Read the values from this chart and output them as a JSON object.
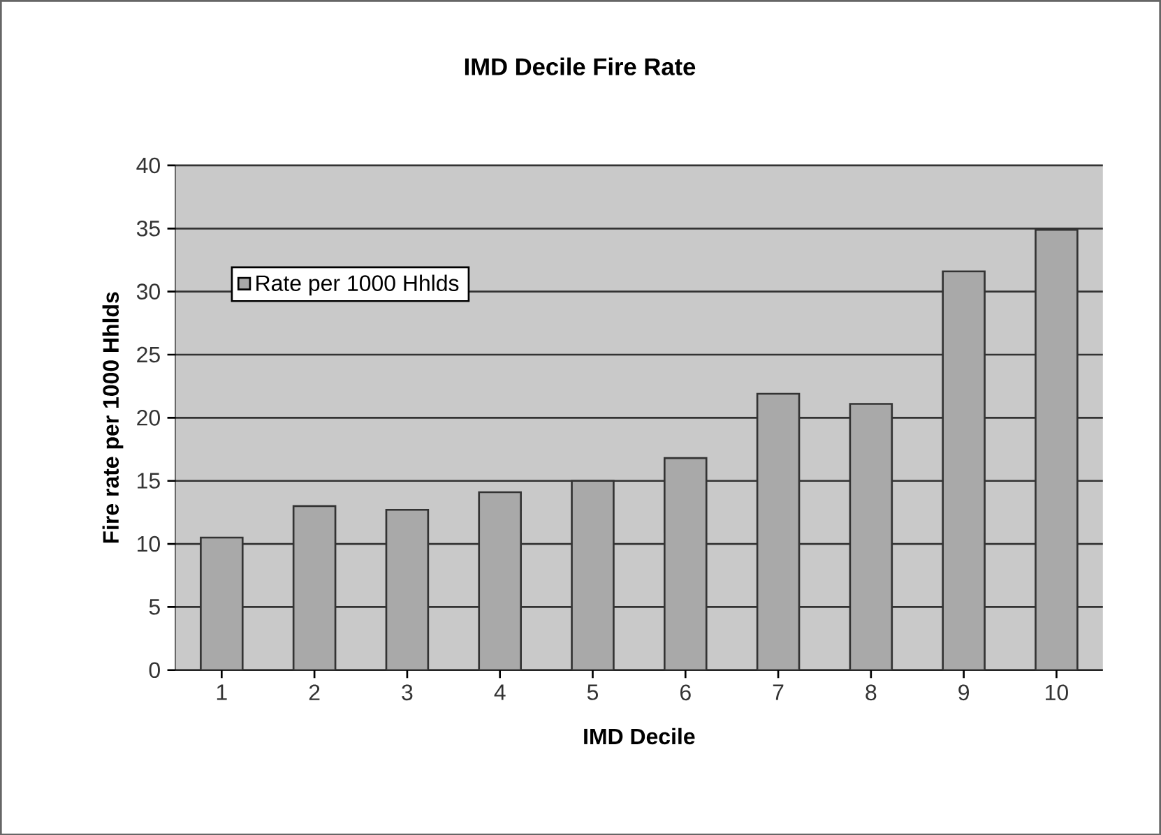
{
  "chart_data": {
    "type": "bar",
    "title": "IMD Decile Fire Rate",
    "xlabel": "IMD Decile",
    "ylabel": "Fire rate per 1000 Hhlds",
    "categories": [
      "1",
      "2",
      "3",
      "4",
      "5",
      "6",
      "7",
      "8",
      "9",
      "10"
    ],
    "series": [
      {
        "name": "Rate per 1000 Hhlds",
        "color": "#a9a9a9",
        "values": [
          10.5,
          13.0,
          12.7,
          14.1,
          15.0,
          16.8,
          21.9,
          21.1,
          31.6,
          34.9
        ]
      }
    ],
    "ylim": [
      0,
      40
    ],
    "yticks": [
      0,
      5,
      10,
      15,
      20,
      25,
      30,
      35,
      40
    ],
    "grid": "y",
    "legend": "top left"
  }
}
